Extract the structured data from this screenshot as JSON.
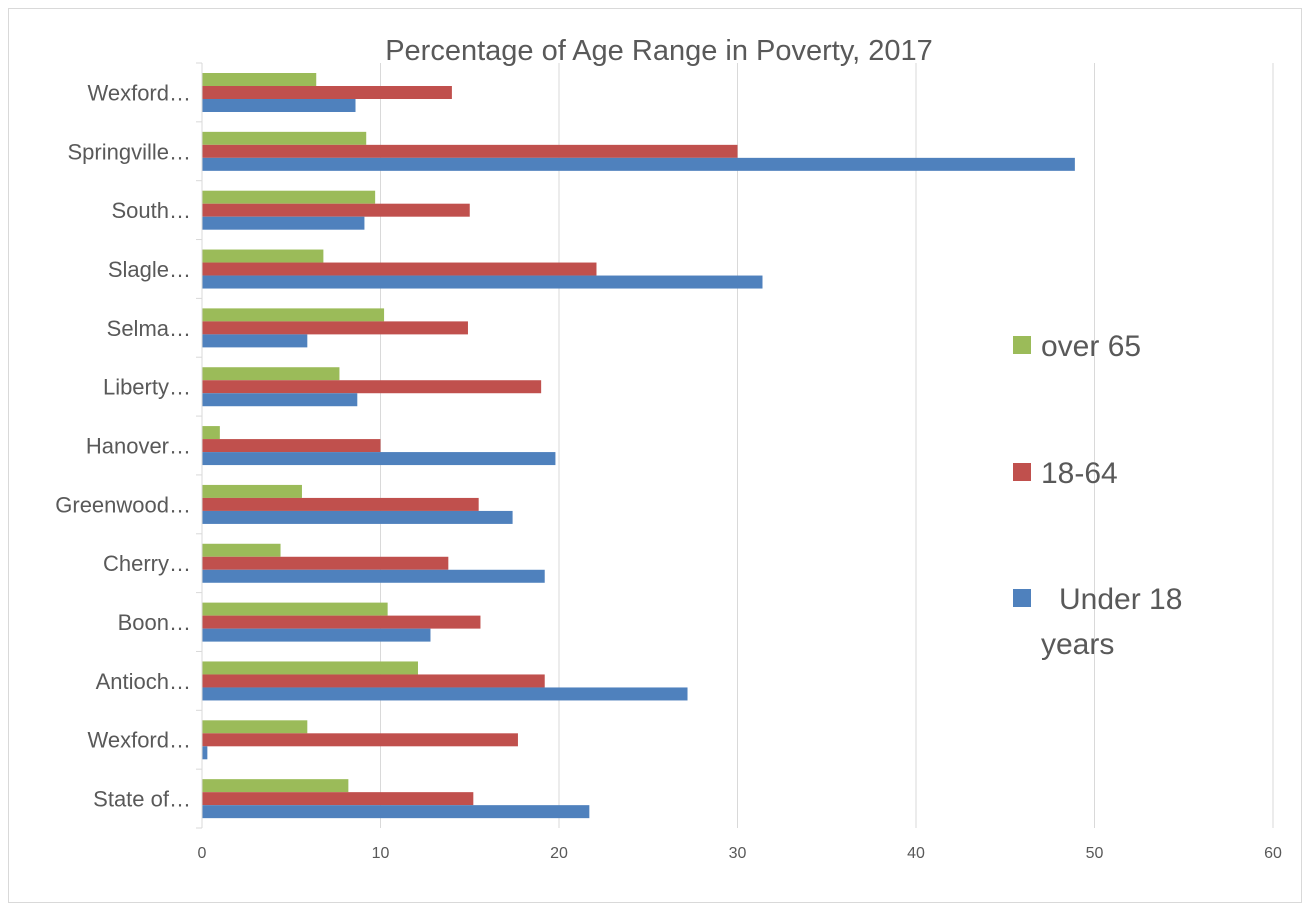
{
  "chart_data": {
    "type": "bar",
    "orientation": "horizontal",
    "title": "Percentage of Age Range in Poverty, 2017",
    "xlabel": "",
    "ylabel": "",
    "xlim": [
      0,
      60
    ],
    "x_ticks": [
      0,
      10,
      20,
      30,
      40,
      50,
      60
    ],
    "grid": true,
    "legend_position": "right",
    "categories": [
      "Wexford…",
      "Springville…",
      "South…",
      "Slagle…",
      "Selma…",
      "Liberty…",
      "Hanover…",
      "Greenwood…",
      "Cherry…",
      "Boon…",
      "Antioch…",
      "Wexford…",
      "State of…"
    ],
    "series": [
      {
        "name": "over 65",
        "color": "#9bbb59",
        "values": [
          6.4,
          9.2,
          9.7,
          6.8,
          10.2,
          7.7,
          1.0,
          5.6,
          4.4,
          10.4,
          12.1,
          5.9,
          8.2
        ]
      },
      {
        "name": "18-64",
        "color": "#c0504d",
        "values": [
          14.0,
          30.0,
          15.0,
          22.1,
          14.9,
          19.0,
          10.0,
          15.5,
          13.8,
          15.6,
          19.2,
          17.7,
          15.2
        ]
      },
      {
        "name": "Under 18 years",
        "legend_lines": [
          "Under 18",
          "years"
        ],
        "color": "#4f81bd",
        "values": [
          8.6,
          48.9,
          9.1,
          31.4,
          5.9,
          8.7,
          19.8,
          17.4,
          19.2,
          12.8,
          27.2,
          0.3,
          21.7
        ]
      }
    ]
  }
}
